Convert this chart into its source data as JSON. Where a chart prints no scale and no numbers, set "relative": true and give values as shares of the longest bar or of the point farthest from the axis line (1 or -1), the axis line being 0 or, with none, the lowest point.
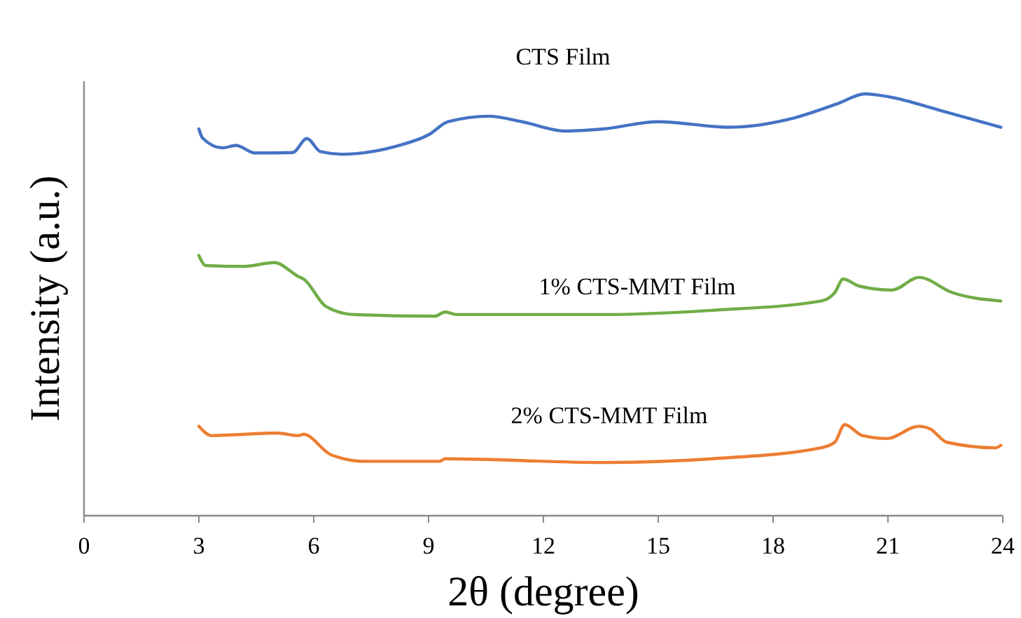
{
  "chart_data": {
    "type": "line",
    "xlabel": "2θ (degree)",
    "ylabel": "Intensity (a.u.)",
    "relative": true,
    "xlim": [
      0,
      24
    ],
    "xticks": [
      0,
      3,
      6,
      9,
      12,
      15,
      18,
      21,
      24
    ],
    "grid": false,
    "marker": "none",
    "line_style": "solid",
    "series": [
      {
        "name": "CTS Film",
        "color": "#4472c4",
        "x": [
          3.0,
          3.1,
          3.62,
          3.97,
          4.46,
          5.45,
          5.82,
          6.18,
          6.73,
          8.16,
          9.02,
          9.51,
          10.57,
          11.44,
          12.58,
          13.57,
          15.0,
          16.84,
          18.55,
          19.69,
          20.4,
          20.97,
          22.4,
          23.95
        ],
        "values": [
          0.917,
          0.895,
          0.872,
          0.878,
          0.86,
          0.861,
          0.894,
          0.863,
          0.857,
          0.876,
          0.904,
          0.934,
          0.947,
          0.934,
          0.912,
          0.917,
          0.934,
          0.921,
          0.943,
          0.977,
          1,
          0.994,
          0.96,
          0.921
        ]
      },
      {
        "name": "1% CTS-MMT Film",
        "color": "#70ad47",
        "x": [
          3.0,
          3.18,
          4.17,
          4.97,
          5.6,
          5.74,
          6.32,
          7.03,
          9.16,
          9.44,
          9.72,
          13.57,
          16.41,
          19.25,
          19.61,
          19.83,
          20.26,
          21.11,
          21.81,
          22.68,
          23.95
        ],
        "values": [
          0.617,
          0.593,
          0.591,
          0.6,
          0.567,
          0.561,
          0.496,
          0.477,
          0.473,
          0.483,
          0.477,
          0.477,
          0.487,
          0.509,
          0.529,
          0.561,
          0.544,
          0.535,
          0.565,
          0.529,
          0.509
        ]
      },
      {
        "name": "2% CTS-MMT Film",
        "color": "#ed7d31",
        "x": [
          3.0,
          3.33,
          5.04,
          5.6,
          5.73,
          6.46,
          7.32,
          9.29,
          9.44,
          13.57,
          16.41,
          19.25,
          19.61,
          19.87,
          20.33,
          20.97,
          21.81,
          22.1,
          22.54,
          23.81,
          23.95
        ],
        "values": [
          0.212,
          0.19,
          0.196,
          0.19,
          0.193,
          0.144,
          0.129,
          0.129,
          0.135,
          0.126,
          0.135,
          0.161,
          0.174,
          0.216,
          0.19,
          0.183,
          0.212,
          0.206,
          0.174,
          0.161,
          0.167
        ]
      }
    ]
  }
}
